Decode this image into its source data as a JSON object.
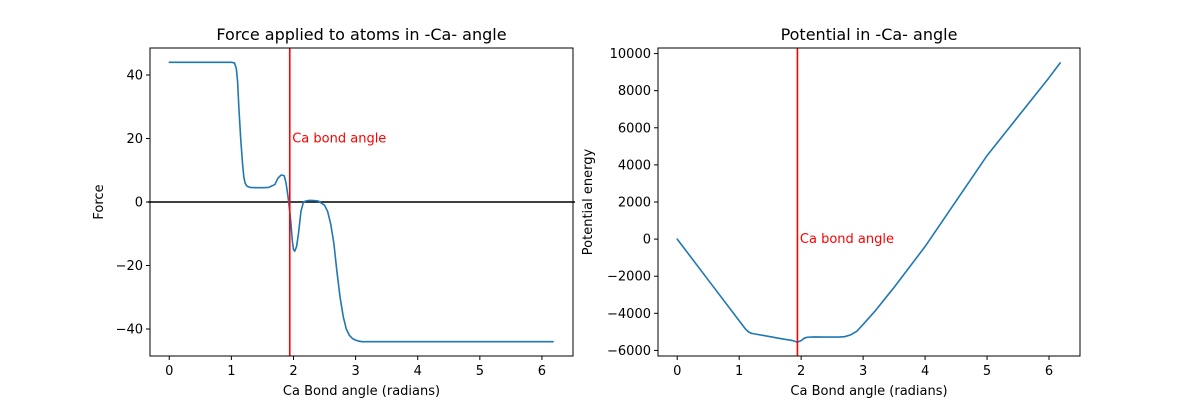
{
  "chart_data": [
    {
      "type": "line",
      "title": "Force applied to atoms in -Ca- angle",
      "xlabel": "Ca Bond angle (radians)",
      "ylabel": "Force",
      "xlim": [
        -0.31,
        6.5
      ],
      "ylim": [
        -48.5,
        48.5
      ],
      "xticks": [
        0,
        1,
        2,
        3,
        4,
        5,
        6
      ],
      "yticks": [
        -40,
        -20,
        0,
        20,
        40
      ],
      "ytick_labels": [
        "−40",
        "−20",
        "0",
        "20",
        "40"
      ],
      "line_color": "#1f77b4",
      "series": [
        {
          "x": [
            0,
            0.5,
            1.0,
            1.05,
            1.08,
            1.1,
            1.12,
            1.15,
            1.18,
            1.2,
            1.22,
            1.25,
            1.3,
            1.4,
            1.5,
            1.6,
            1.7,
            1.75,
            1.8,
            1.85,
            1.88,
            1.91,
            1.94,
            1.96,
            1.98,
            2.0,
            2.02,
            2.05,
            2.08,
            2.12,
            2.16,
            2.2,
            2.25,
            2.3,
            2.4,
            2.5,
            2.55,
            2.6,
            2.65,
            2.7,
            2.75,
            2.8,
            2.85,
            2.9,
            2.95,
            3.0,
            3.05,
            3.1,
            3.2,
            3.5,
            4.0,
            5.0,
            6.0,
            6.18
          ],
          "y": [
            44,
            44,
            44,
            43.8,
            42,
            38,
            30,
            20,
            12,
            8,
            6,
            5,
            4.6,
            4.5,
            4.5,
            4.6,
            5.5,
            7.5,
            8.5,
            8.3,
            6,
            2,
            -3,
            -7,
            -12,
            -15,
            -15.5,
            -14,
            -10,
            -3,
            0,
            0.3,
            0.5,
            0.5,
            0.3,
            -1,
            -3,
            -7,
            -13,
            -22,
            -30,
            -36,
            -40,
            -42,
            -43,
            -43.5,
            -43.8,
            -44,
            -44,
            -44,
            -44,
            -44,
            -44,
            -44
          ]
        }
      ],
      "hlines": [
        {
          "y": 0,
          "color": "#000000"
        }
      ],
      "vlines": [
        {
          "x": 1.94,
          "color": "#ff0000"
        }
      ],
      "annotations": [
        {
          "text": "Ca bond angle",
          "x": 1.98,
          "y": 20,
          "color": "#ff0000"
        }
      ]
    },
    {
      "type": "line",
      "title": "Potential in -Ca- angle",
      "xlabel": "Ca Bond angle (radians)",
      "ylabel": "Potential energy",
      "xlim": [
        -0.31,
        6.5
      ],
      "ylim": [
        -6300,
        10300
      ],
      "xticks": [
        0,
        1,
        2,
        3,
        4,
        5,
        6
      ],
      "yticks": [
        -6000,
        -4000,
        -2000,
        0,
        2000,
        4000,
        6000,
        8000,
        10000
      ],
      "ytick_labels": [
        "−6000",
        "−4000",
        "−2000",
        "0",
        "2000",
        "4000",
        "6000",
        "8000",
        "10000"
      ],
      "line_color": "#1f77b4",
      "series": [
        {
          "x": [
            0,
            0.5,
            1.0,
            1.1,
            1.15,
            1.2,
            1.3,
            1.5,
            1.7,
            1.85,
            1.94,
            2.0,
            2.05,
            2.1,
            2.2,
            2.4,
            2.6,
            2.7,
            2.8,
            2.9,
            3.0,
            3.2,
            3.5,
            4.0,
            5.0,
            6.0,
            6.18
          ],
          "y": [
            0,
            -2200,
            -4400,
            -4840,
            -5000,
            -5080,
            -5140,
            -5260,
            -5380,
            -5460,
            -5550,
            -5470,
            -5340,
            -5290,
            -5270,
            -5280,
            -5280,
            -5260,
            -5160,
            -4960,
            -4600,
            -3850,
            -2600,
            -400,
            4500,
            8700,
            9500
          ]
        }
      ],
      "vlines": [
        {
          "x": 1.94,
          "color": "#ff0000"
        }
      ],
      "annotations": [
        {
          "text": "Ca bond angle",
          "x": 1.98,
          "y": 0,
          "color": "#ff0000"
        }
      ]
    }
  ]
}
